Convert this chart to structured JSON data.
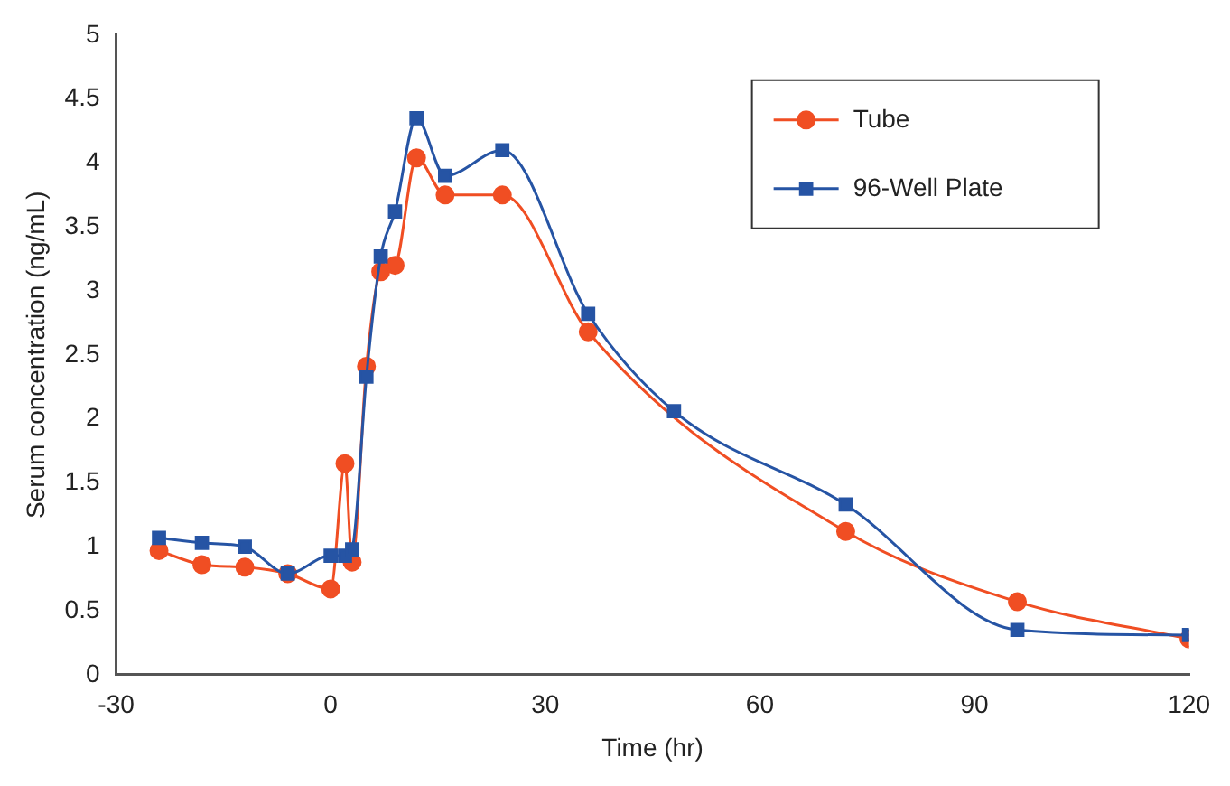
{
  "chart_data": {
    "type": "line",
    "xlabel": "Time (hr)",
    "ylabel": "Serum concentration (ng/mL)",
    "xlim": [
      -30,
      120
    ],
    "xticks": [
      -30,
      0,
      30,
      60,
      90,
      120
    ],
    "ylim": [
      0,
      5
    ],
    "yticks": [
      0,
      0.5,
      1,
      1.5,
      2,
      2.5,
      3,
      3.5,
      4,
      4.5,
      5
    ],
    "grid": false,
    "legend": "top right",
    "series": [
      {
        "name": "Tube",
        "color": "#f04e23",
        "marker": "circle",
        "x": [
          -24,
          -18,
          -12,
          -6,
          0,
          2,
          3,
          5,
          7,
          9,
          12,
          16,
          24,
          36,
          72,
          96,
          120
        ],
        "values": [
          0.97,
          0.86,
          0.84,
          0.79,
          0.67,
          1.65,
          0.88,
          2.41,
          3.15,
          3.2,
          4.04,
          3.75,
          3.75,
          2.68,
          1.12,
          0.57,
          0.28
        ]
      },
      {
        "name": "96-Well Plate",
        "color": "#2654a4",
        "marker": "square",
        "x": [
          -24,
          -18,
          -12,
          -6,
          0,
          2,
          3,
          5,
          7,
          9,
          12,
          16,
          24,
          36,
          48,
          72,
          96,
          120
        ],
        "values": [
          1.07,
          1.03,
          1.0,
          0.79,
          0.93,
          0.93,
          0.98,
          2.33,
          3.27,
          3.62,
          4.35,
          3.9,
          4.1,
          2.82,
          2.06,
          1.33,
          0.35,
          0.31
        ]
      }
    ]
  }
}
